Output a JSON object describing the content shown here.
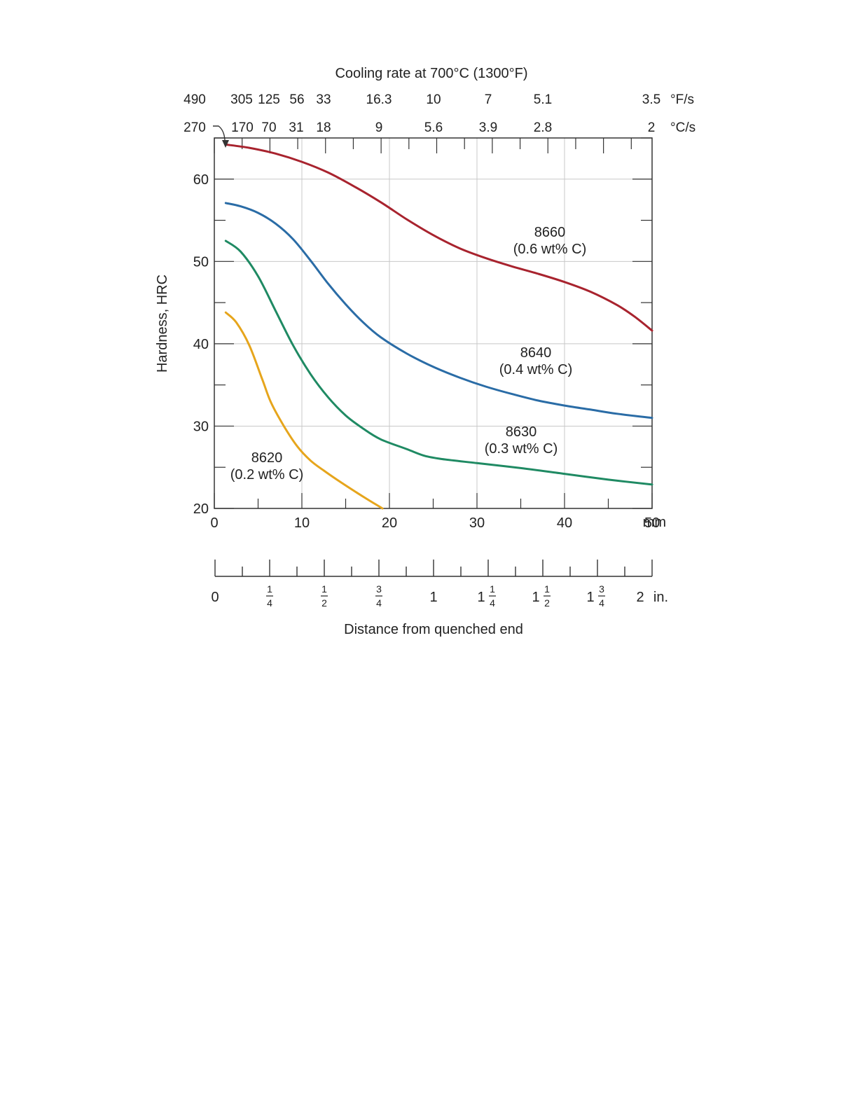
{
  "chart_data": {
    "type": "line",
    "title": "Cooling rate at 700°C (1300°F)",
    "xlabel": "Distance from quenched end",
    "ylabel": "Hardness, HRC",
    "x_unit": "mm",
    "xlim": [
      0,
      50
    ],
    "ylim": [
      20,
      65
    ],
    "x_ticks": [
      0,
      10,
      20,
      30,
      40,
      50
    ],
    "x_tick_labels": [
      "0",
      "10",
      "20",
      "30",
      "40",
      "50"
    ],
    "y_ticks": [
      20,
      30,
      40,
      50,
      60
    ],
    "y_tick_labels": [
      "20",
      "30",
      "40",
      "50",
      "60"
    ],
    "grid": true,
    "series": [
      {
        "name": "8660",
        "note": "(0.6 wt% C)",
        "color": "#a8232e",
        "x": [
          1.3,
          4,
          7,
          10,
          13,
          16,
          19,
          22,
          25,
          28,
          31,
          34,
          37,
          40,
          43,
          46,
          48,
          50
        ],
        "y": [
          64.2,
          63.8,
          63.1,
          62.1,
          60.8,
          59.1,
          57.2,
          55.1,
          53.2,
          51.6,
          50.4,
          49.4,
          48.5,
          47.5,
          46.3,
          44.7,
          43.3,
          41.6
        ]
      },
      {
        "name": "8640",
        "note": "(0.4 wt% C)",
        "color": "#2a6ca6",
        "x": [
          1.3,
          3,
          5,
          7,
          9,
          11,
          13,
          15,
          17,
          19,
          22,
          25,
          28,
          31,
          34,
          37,
          40,
          43,
          46,
          50
        ],
        "y": [
          57.1,
          56.7,
          55.9,
          54.6,
          52.7,
          50.1,
          47.3,
          44.8,
          42.6,
          40.8,
          38.8,
          37.2,
          35.9,
          34.8,
          33.9,
          33.1,
          32.5,
          32.0,
          31.5,
          31.0
        ]
      },
      {
        "name": "8630",
        "note": "(0.3 wt% C)",
        "color": "#1f8a63",
        "x": [
          1.3,
          3,
          5,
          7,
          9,
          11,
          13,
          15,
          17,
          19,
          22,
          24,
          26,
          30,
          35,
          40,
          45,
          50
        ],
        "y": [
          52.5,
          51.2,
          48.2,
          44.0,
          39.8,
          36.3,
          33.5,
          31.3,
          29.7,
          28.4,
          27.2,
          26.4,
          26.0,
          25.5,
          24.9,
          24.2,
          23.5,
          22.9
        ]
      },
      {
        "name": "8620",
        "note": "(0.2 wt% C)",
        "color": "#e6a51c",
        "x": [
          1.3,
          2.5,
          4,
          5.5,
          6.5,
          8,
          9.5,
          11,
          12.5,
          14,
          16,
          17.5,
          19.2
        ],
        "y": [
          43.8,
          42.6,
          39.8,
          35.6,
          32.8,
          29.9,
          27.5,
          25.8,
          24.6,
          23.5,
          22.1,
          21.1,
          20.0
        ]
      }
    ],
    "cooling_rate_F_per_s": [
      "490",
      "305",
      "125",
      "56",
      "33",
      "16.3",
      "10",
      "7",
      "5.1",
      "3.5"
    ],
    "cooling_rate_F_unit": "°F/s",
    "cooling_rate_C_per_s": [
      "270",
      "170",
      "70",
      "31",
      "18",
      "9",
      "5.6",
      "3.9",
      "2.8",
      "2"
    ],
    "cooling_rate_C_unit": "°C/s",
    "cooling_rate_positions_mm": [
      0,
      3,
      6,
      9,
      12,
      19,
      25,
      31,
      37,
      50
    ],
    "inch_axis": {
      "unit": "in.",
      "labels": [
        {
          "value": 0,
          "whole": "0",
          "num": "",
          "den": ""
        },
        {
          "value": 0.25,
          "whole": "",
          "num": "1",
          "den": "4"
        },
        {
          "value": 0.5,
          "whole": "",
          "num": "1",
          "den": "2"
        },
        {
          "value": 0.75,
          "whole": "",
          "num": "3",
          "den": "4"
        },
        {
          "value": 1,
          "whole": "1",
          "num": "",
          "den": ""
        },
        {
          "value": 1.25,
          "whole": "1",
          "num": "1",
          "den": "4"
        },
        {
          "value": 1.5,
          "whole": "1",
          "num": "1",
          "den": "2"
        },
        {
          "value": 1.75,
          "whole": "1",
          "num": "3",
          "den": "4"
        },
        {
          "value": 2,
          "whole": "2",
          "num": "",
          "den": ""
        }
      ]
    }
  }
}
